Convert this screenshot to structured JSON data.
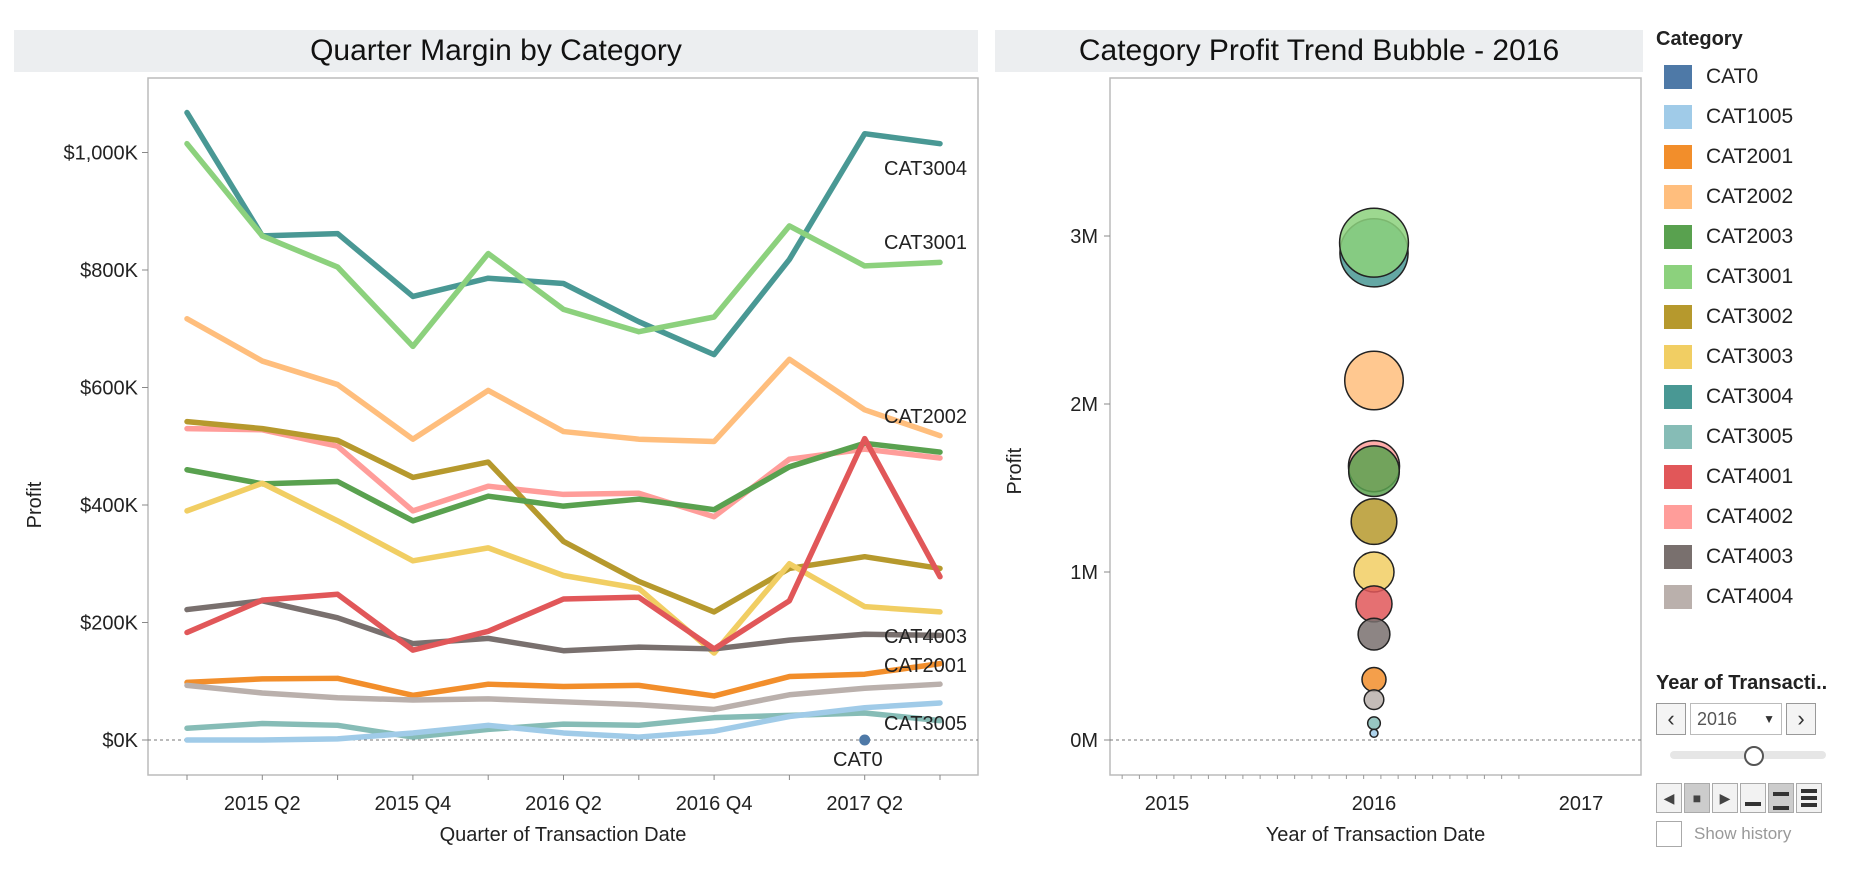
{
  "left_title": "Quarter Margin by Category",
  "right_title": "Category Profit Trend Bubble - 2016",
  "legend_title": "Category",
  "colors": {
    "CAT0": "#4e79a7",
    "CAT1005": "#a0cbe8",
    "CAT2001": "#f28e2b",
    "CAT2002": "#ffbe7d",
    "CAT2003": "#59a14f",
    "CAT3001": "#8cd17d",
    "CAT3002": "#b6992d",
    "CAT3003": "#f1ce63",
    "CAT3004": "#499894",
    "CAT3005": "#86bcb6",
    "CAT4001": "#e15759",
    "CAT4002": "#ff9d9a",
    "CAT4003": "#79706e",
    "CAT4004": "#bab0ac"
  },
  "year_filter": {
    "title": "Year of Transacti..",
    "value": "2016",
    "history_label": "Show history"
  },
  "chart_data": [
    {
      "type": "line",
      "title": "Quarter Margin by Category",
      "xlabel": "Quarter of Transaction Date",
      "ylabel": "Profit",
      "x": [
        "2015 Q1",
        "2015 Q2",
        "2015 Q3",
        "2015 Q4",
        "2016 Q1",
        "2016 Q2",
        "2016 Q3",
        "2016 Q4",
        "2017 Q1",
        "2017 Q2",
        "2017 Q3"
      ],
      "x_tick_labels": [
        "2015 Q2",
        "2015 Q4",
        "2016 Q2",
        "2016 Q4",
        "2017 Q2"
      ],
      "y_tick_labels": [
        "$0K",
        "$200K",
        "$400K",
        "$600K",
        "$800K",
        "$1,000K"
      ],
      "ylim": [
        -60,
        1125
      ],
      "grid": false,
      "series": [
        {
          "name": "CAT3004",
          "values": [
            1068,
            858,
            862,
            755,
            786,
            777,
            712,
            656,
            818,
            1032,
            1015
          ]
        },
        {
          "name": "CAT3001",
          "values": [
            1015,
            858,
            805,
            670,
            828,
            733,
            695,
            720,
            875,
            807,
            813
          ]
        },
        {
          "name": "CAT2002",
          "values": [
            717,
            645,
            605,
            512,
            595,
            525,
            512,
            508,
            648,
            562,
            518
          ]
        },
        {
          "name": "CAT4002",
          "values": [
            530,
            528,
            500,
            390,
            432,
            418,
            420,
            380,
            478,
            495,
            480
          ]
        },
        {
          "name": "CAT3002",
          "values": [
            542,
            530,
            510,
            447,
            473,
            338,
            270,
            218,
            292,
            312,
            292
          ]
        },
        {
          "name": "CAT2003",
          "values": [
            460,
            436,
            440,
            373,
            415,
            398,
            410,
            392,
            465,
            505,
            490
          ]
        },
        {
          "name": "CAT3003",
          "values": [
            390,
            437,
            373,
            305,
            327,
            280,
            258,
            148,
            300,
            227,
            218
          ]
        },
        {
          "name": "CAT4003",
          "values": [
            222,
            237,
            208,
            164,
            173,
            152,
            158,
            155,
            170,
            180,
            178
          ]
        },
        {
          "name": "CAT4001",
          "values": [
            183,
            238,
            248,
            153,
            185,
            240,
            243,
            155,
            237,
            513,
            278
          ]
        },
        {
          "name": "CAT2001",
          "values": [
            98,
            104,
            105,
            76,
            95,
            91,
            93,
            75,
            108,
            112,
            130
          ]
        },
        {
          "name": "CAT4004",
          "values": [
            93,
            80,
            72,
            68,
            70,
            65,
            60,
            52,
            77,
            88,
            95
          ]
        },
        {
          "name": "CAT3005",
          "values": [
            20,
            28,
            25,
            5,
            18,
            27,
            25,
            38,
            42,
            46,
            33
          ]
        },
        {
          "name": "CAT1005",
          "values": [
            0,
            0,
            2,
            12,
            25,
            12,
            5,
            15,
            40,
            55,
            63
          ]
        },
        {
          "name": "CAT0",
          "values": [
            null,
            null,
            null,
            null,
            null,
            null,
            null,
            null,
            null,
            0,
            null
          ]
        }
      ],
      "end_labels": [
        "CAT3004",
        "CAT3001",
        "CAT2002",
        "CAT4003",
        "CAT2001",
        "CAT3005",
        "CAT0"
      ]
    },
    {
      "type": "scatter",
      "title": "Category Profit Trend Bubble - 2016",
      "xlabel": "Year of Transaction Date",
      "ylabel": "Profit",
      "x_tick_labels": [
        "2015",
        "2016",
        "2017"
      ],
      "xlim": [
        2014.7,
        2017.13
      ],
      "y_tick_labels": [
        "0M",
        "1M",
        "2M",
        "3M"
      ],
      "ylim": [
        -0.2,
        3.93
      ],
      "points": [
        {
          "name": "CAT3004",
          "x": 2016,
          "y": 2.9
        },
        {
          "name": "CAT3001",
          "x": 2016,
          "y": 2.96
        },
        {
          "name": "CAT2002",
          "x": 2016,
          "y": 2.14
        },
        {
          "name": "CAT4002",
          "x": 2016,
          "y": 1.63
        },
        {
          "name": "CAT2003",
          "x": 2016,
          "y": 1.6
        },
        {
          "name": "CAT3002",
          "x": 2016,
          "y": 1.3
        },
        {
          "name": "CAT3003",
          "x": 2016,
          "y": 1.0
        },
        {
          "name": "CAT4001",
          "x": 2016,
          "y": 0.81
        },
        {
          "name": "CAT4003",
          "x": 2016,
          "y": 0.63
        },
        {
          "name": "CAT2001",
          "x": 2016,
          "y": 0.36
        },
        {
          "name": "CAT4004",
          "x": 2016,
          "y": 0.24
        },
        {
          "name": "CAT3005",
          "x": 2016,
          "y": 0.1
        },
        {
          "name": "CAT1005",
          "x": 2016,
          "y": 0.04
        }
      ]
    }
  ]
}
